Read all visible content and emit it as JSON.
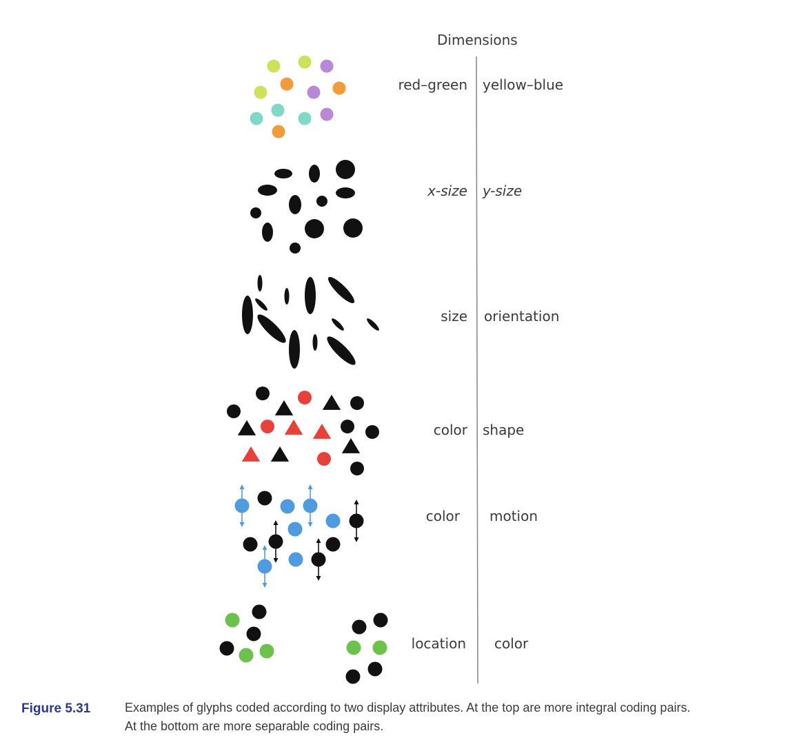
{
  "heading": "Dimensions",
  "rows": [
    {
      "left_label": "red–green",
      "right_label": "yellow–blue"
    },
    {
      "left_label": "x-size",
      "right_label": "y-size"
    },
    {
      "left_label": "size",
      "right_label": "orientation"
    },
    {
      "left_label": "color",
      "right_label": "shape"
    },
    {
      "left_label": "color",
      "right_label": "motion"
    },
    {
      "left_label": "location",
      "right_label": "color"
    }
  ],
  "caption": {
    "number": "Figure 5.31",
    "line1": "Examples of glyphs coded according to two display attributes. At the top are more integral coding pairs.",
    "line2": "At the bottom are more separable coding pairs."
  },
  "colors": {
    "glyph_black": "#111111",
    "red": "#e8413a",
    "blue": "#4f9be0",
    "green": "#6cc24a",
    "lime": "#cfe05a",
    "orange": "#f39a3a",
    "purple": "#b988d6",
    "teal": "#7fd8c8",
    "caption_number": "#2a3a8c"
  }
}
